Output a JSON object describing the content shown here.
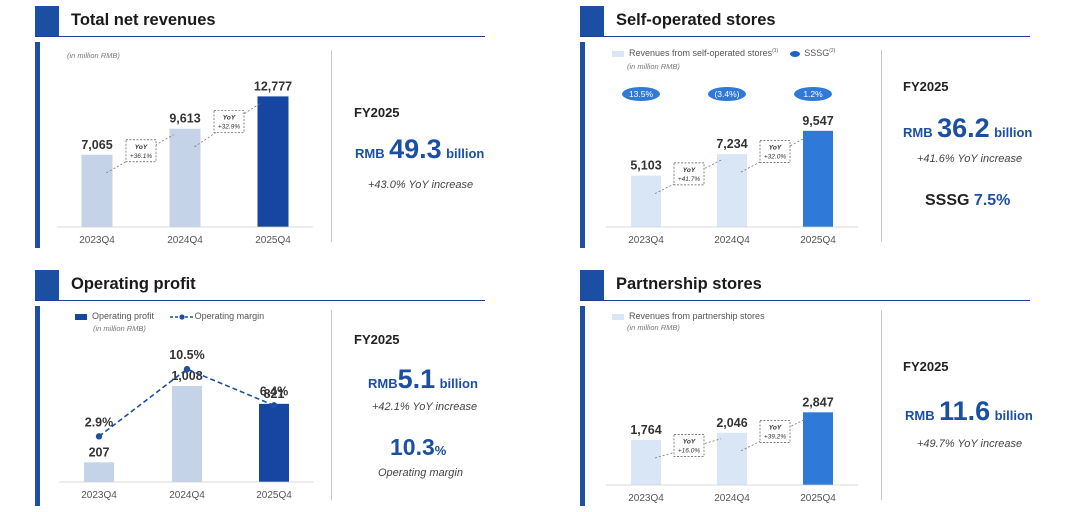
{
  "panels": {
    "revenues": {
      "title": "Total net revenues",
      "unit_note": "(in million RMB)",
      "fy": "FY2025",
      "kpi_currency": "RMB",
      "kpi_value": "49.3",
      "kpi_unit": "billion",
      "kpi_sub": "+43.0% YoY increase"
    },
    "self": {
      "title": "Self-operated stores",
      "legend_revenue": "Revenues from self-operated stores",
      "legend_revenue_sup": "(1)",
      "legend_sssg": "SSSG",
      "legend_sssg_sup": "(2)",
      "unit_note": "(in million RMB)",
      "sssg_values": [
        "13.5%",
        "(3.4%)",
        "1.2%"
      ],
      "fy": "FY2025",
      "kpi_currency": "RMB",
      "kpi_value": "36.2",
      "kpi_unit": "billion",
      "kpi_sub": "+41.6% YoY increase",
      "sssg_label": "SSSG",
      "sssg_value": "7.5%"
    },
    "profit": {
      "title": "Operating profit",
      "legend_profit": "Operating profit",
      "legend_margin": "Operating margin",
      "unit_note": "(in million RMB)",
      "fy": "FY2025",
      "kpi_currency": "RMB",
      "kpi_value": "5.1",
      "kpi_unit": "billion",
      "kpi_sub": "+42.1% YoY increase",
      "margin_value": "10.3",
      "margin_pct": "%",
      "margin_label": "Operating margin"
    },
    "partner": {
      "title": "Partnership stores",
      "legend_revenue": "Revenues from partnership stores",
      "unit_note": "(in million RMB)",
      "fy": "FY2025",
      "kpi_currency": "RMB",
      "kpi_value": "11.6",
      "kpi_unit": "billion",
      "kpi_sub": "+49.7% YoY increase"
    }
  },
  "colors": {
    "header_blue": "#1a4fa3",
    "bar_light": "#c5d3e8",
    "bar_dark": "#1746a2",
    "bar_pale": "#d8e6f6",
    "bar_mid": "#2f7ad8",
    "sssg_pill": "#2f7ad8"
  },
  "chart_data": [
    {
      "type": "bar",
      "id": "revenues",
      "categories": [
        "2023Q4",
        "2024Q4",
        "2025Q4"
      ],
      "values": [
        7065,
        9613,
        12777
      ],
      "value_labels": [
        "7,065",
        "9,613",
        "12,777"
      ],
      "yoy_labels": [
        "+36.1%",
        "+32.9%"
      ],
      "yoy_word": "YoY",
      "ylim": [
        0,
        13500
      ]
    },
    {
      "type": "bar",
      "id": "self",
      "categories": [
        "2023Q4",
        "2024Q4",
        "2025Q4"
      ],
      "values": [
        5103,
        7234,
        9547
      ],
      "value_labels": [
        "5,103",
        "7,234",
        "9,547"
      ],
      "yoy_labels": [
        "+41.7%",
        "+32.0%"
      ],
      "yoy_word": "YoY",
      "ylim": [
        0,
        13500
      ]
    },
    {
      "type": "bar",
      "id": "profit",
      "categories": [
        "2023Q4",
        "2024Q4",
        "2025Q4"
      ],
      "series": [
        {
          "name": "Operating profit",
          "values": [
            207,
            1008,
            821
          ],
          "value_labels": [
            "207",
            "1,008",
            "821"
          ]
        },
        {
          "name": "Operating margin",
          "values": [
            2.9,
            10.5,
            6.4
          ],
          "value_labels": [
            "2.9%",
            "10.5%",
            "6.4%"
          ]
        }
      ],
      "ylim": [
        0,
        1250
      ],
      "margin_ylim": [
        0,
        13
      ]
    },
    {
      "type": "bar",
      "id": "partner",
      "categories": [
        "2023Q4",
        "2024Q4",
        "2025Q4"
      ],
      "values": [
        1764,
        2046,
        2847
      ],
      "value_labels": [
        "1,764",
        "2,046",
        "2,847"
      ],
      "yoy_labels": [
        "+16.0%",
        "+39.2%"
      ],
      "yoy_word": "YoY",
      "ylim": [
        0,
        4700
      ]
    }
  ]
}
